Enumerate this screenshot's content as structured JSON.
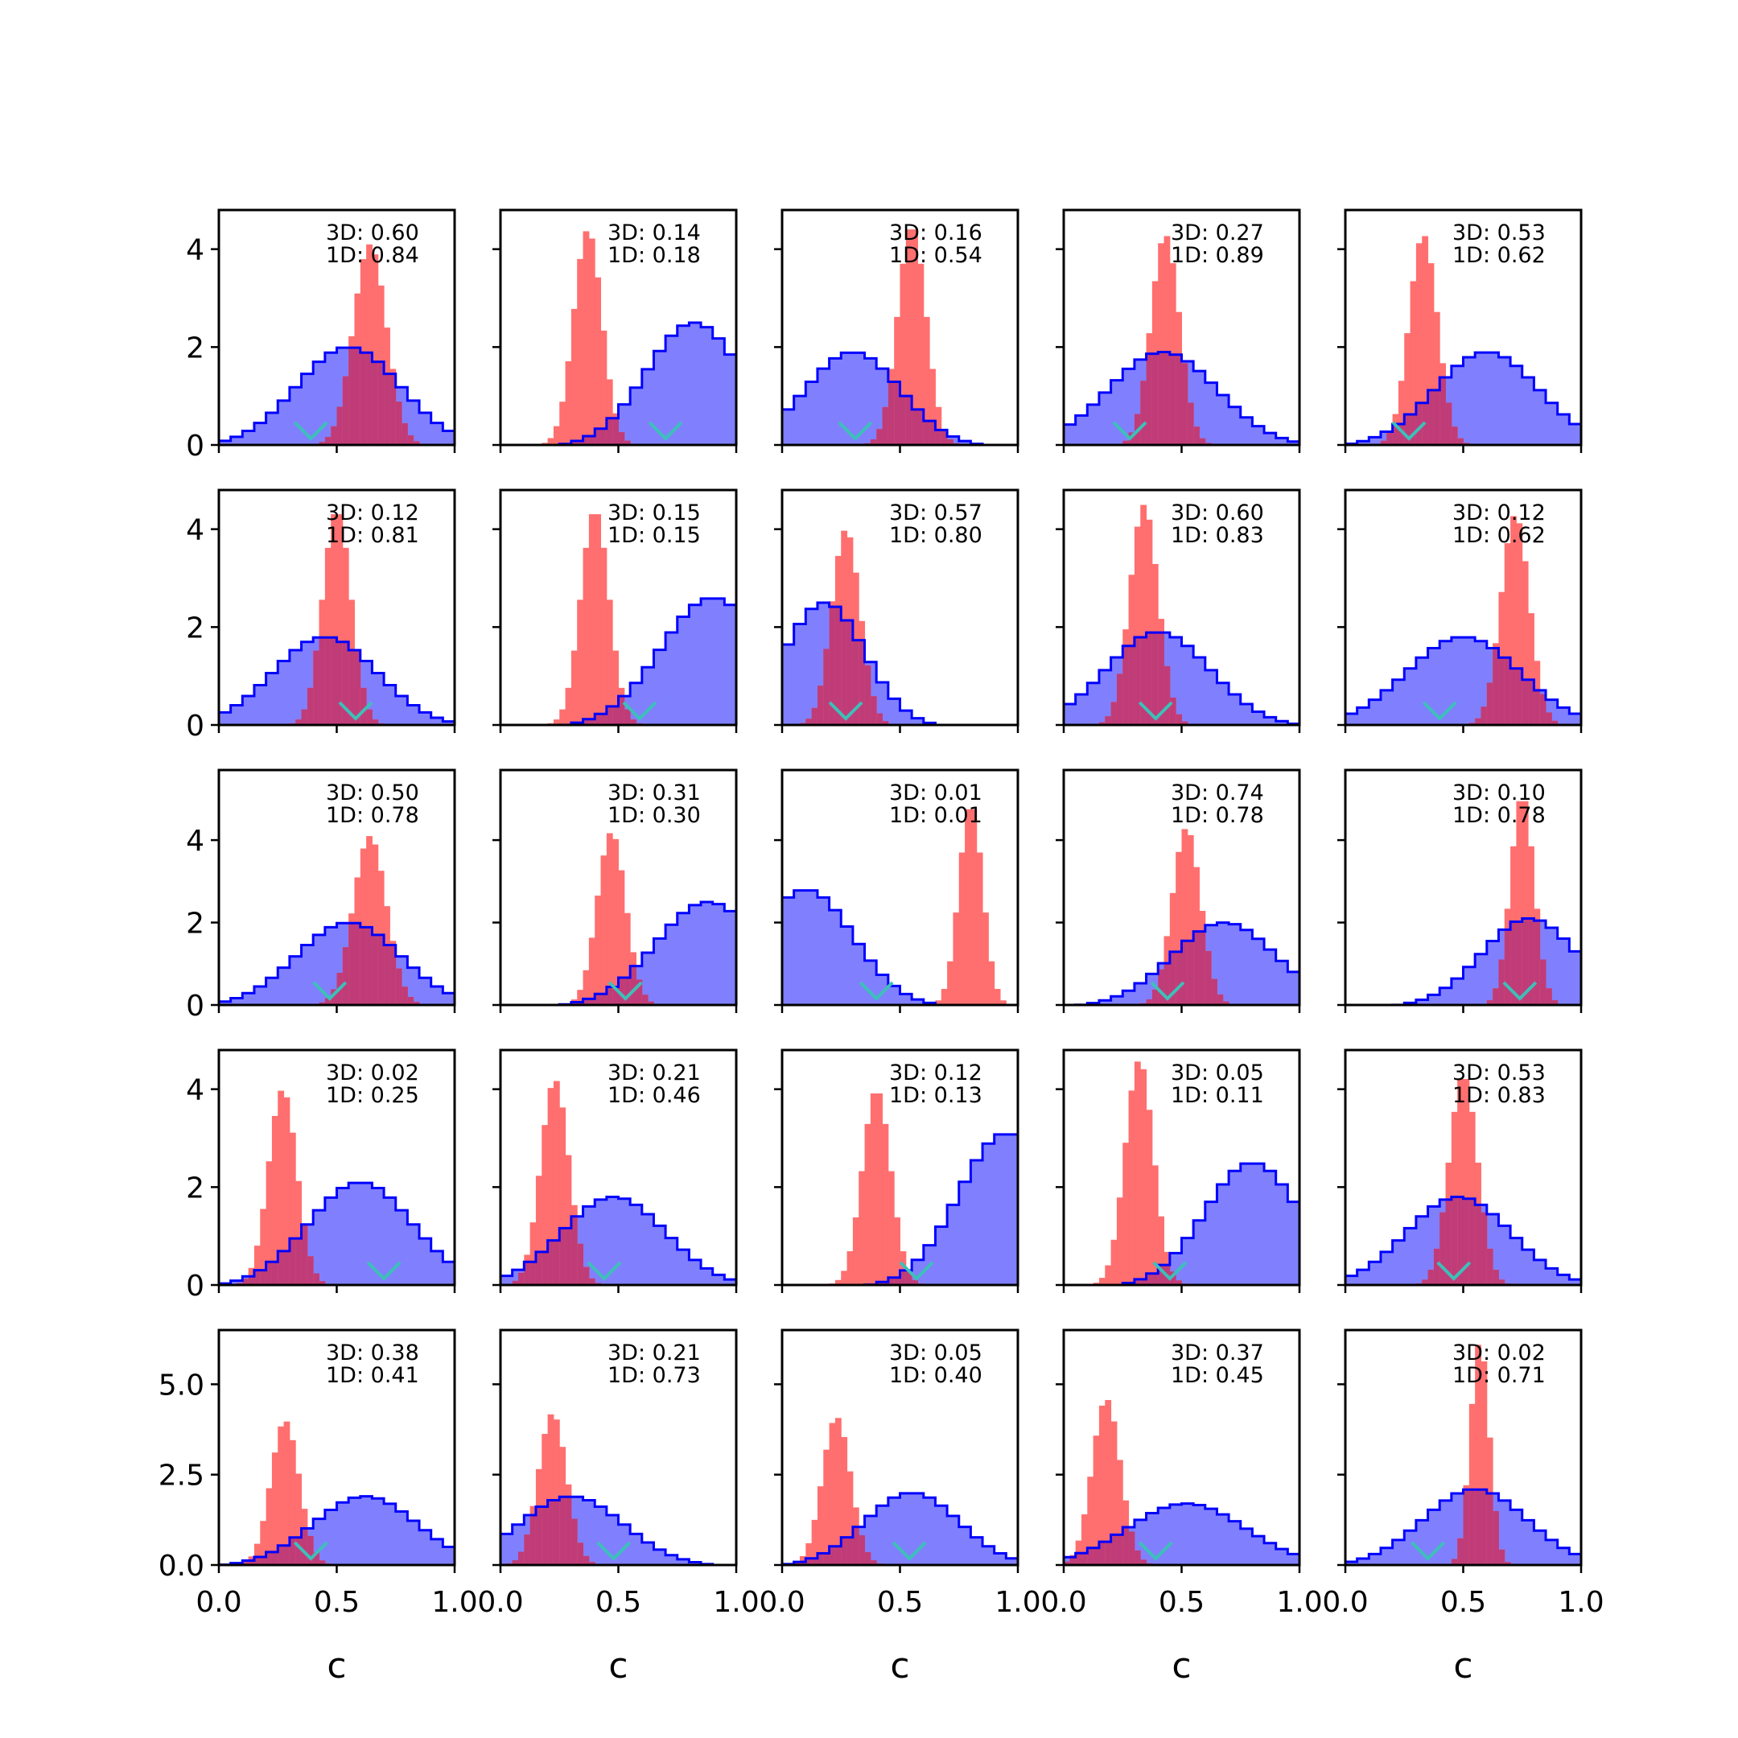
{
  "chart_data": {
    "type": "histogram-grid",
    "rows": 5,
    "cols": 5,
    "xlabel": "c",
    "xlim": [
      0,
      1
    ],
    "x_ticks": [
      "0.0",
      "0.5",
      "1.0"
    ],
    "bin_count": 20,
    "row_ylim": [
      [
        0,
        4.8
      ],
      [
        0,
        4.8
      ],
      [
        0,
        5.7
      ],
      [
        0,
        4.8
      ],
      [
        0,
        6.5
      ]
    ],
    "row_y_ticks": [
      [
        {
          "v": 0,
          "label": "0"
        },
        {
          "v": 2,
          "label": "2"
        },
        {
          "v": 4,
          "label": "4"
        }
      ],
      [
        {
          "v": 0,
          "label": "0"
        },
        {
          "v": 2,
          "label": "2"
        },
        {
          "v": 4,
          "label": "4"
        }
      ],
      [
        {
          "v": 0,
          "label": "0"
        },
        {
          "v": 2,
          "label": "2"
        },
        {
          "v": 4,
          "label": "4"
        }
      ],
      [
        {
          "v": 0,
          "label": "0"
        },
        {
          "v": 2,
          "label": "2"
        },
        {
          "v": 4,
          "label": "4"
        }
      ],
      [
        {
          "v": 0,
          "label": "0.0"
        },
        {
          "v": 2.5,
          "label": "2.5"
        },
        {
          "v": 5,
          "label": "5.0"
        }
      ]
    ],
    "colors": {
      "prior": "#0000ff",
      "prior_fill": "#8080ff",
      "posterior": "#ff6f6f",
      "overlap": "#c03c78",
      "marker": "#3cc0b8"
    },
    "panels": [
      {
        "label3d": "3D: 0.60",
        "label1d": "1D: 0.84",
        "prior": {
          "mean": 0.55,
          "sd": 0.22,
          "peak": 2.0,
          "decay": 0.12
        },
        "post": {
          "mean": 0.64,
          "sd": 0.07,
          "peak": 4.1
        },
        "marker": 0.39
      },
      {
        "label3d": "3D: 0.14",
        "label1d": "1D: 0.18",
        "prior": {
          "mean": 0.82,
          "sd": 0.2,
          "peak": 2.5,
          "decay": 0.12
        },
        "post": {
          "mean": 0.37,
          "sd": 0.06,
          "peak": 4.4
        },
        "marker": 0.7
      },
      {
        "label3d": "3D: 0.16",
        "label1d": "1D: 0.54",
        "prior": {
          "mean": 0.3,
          "sd": 0.2,
          "peak": 1.9,
          "decay": 0.12
        },
        "post": {
          "mean": 0.55,
          "sd": 0.06,
          "peak": 4.5
        },
        "marker": 0.31
      },
      {
        "label3d": "3D: 0.27",
        "label1d": "1D: 0.89",
        "prior": {
          "mean": 0.42,
          "sd": 0.23,
          "peak": 1.9,
          "decay": 0.12
        },
        "post": {
          "mean": 0.43,
          "sd": 0.06,
          "peak": 4.3
        },
        "marker": 0.28
      },
      {
        "label3d": "3D: 0.53",
        "label1d": "1D: 0.62",
        "prior": {
          "mean": 0.6,
          "sd": 0.22,
          "peak": 1.9,
          "decay": 0.12
        },
        "post": {
          "mean": 0.33,
          "sd": 0.06,
          "peak": 4.3
        },
        "marker": 0.27
      },
      {
        "label3d": "3D: 0.12",
        "label1d": "1D: 0.81",
        "prior": {
          "mean": 0.45,
          "sd": 0.22,
          "peak": 1.8,
          "decay": 0.12
        },
        "post": {
          "mean": 0.5,
          "sd": 0.06,
          "peak": 4.4
        },
        "marker": 0.58
      },
      {
        "label3d": "3D: 0.15",
        "label1d": "1D: 0.15",
        "prior": {
          "mean": 0.9,
          "sd": 0.22,
          "peak": 2.6,
          "decay": 0.12
        },
        "post": {
          "mean": 0.4,
          "sd": 0.06,
          "peak": 4.4
        },
        "marker": 0.59
      },
      {
        "label3d": "3D: 0.57",
        "label1d": "1D: 0.80",
        "prior": {
          "mean": 0.18,
          "sd": 0.17,
          "peak": 2.5,
          "decay": 0.12
        },
        "post": {
          "mean": 0.27,
          "sd": 0.06,
          "peak": 4.0
        },
        "marker": 0.27
      },
      {
        "label3d": "3D: 0.60",
        "label1d": "1D: 0.83",
        "prior": {
          "mean": 0.4,
          "sd": 0.22,
          "peak": 1.9,
          "decay": 0.12
        },
        "post": {
          "mean": 0.34,
          "sd": 0.06,
          "peak": 4.5
        },
        "marker": 0.39
      },
      {
        "label3d": "3D: 0.12",
        "label1d": "1D: 0.62",
        "prior": {
          "mean": 0.5,
          "sd": 0.24,
          "peak": 1.8,
          "decay": 0.12
        },
        "post": {
          "mean": 0.72,
          "sd": 0.06,
          "peak": 4.3
        },
        "marker": 0.4
      },
      {
        "label3d": "3D: 0.50",
        "label1d": "1D: 0.78",
        "prior": {
          "mean": 0.55,
          "sd": 0.22,
          "peak": 2.0,
          "decay": 0.12
        },
        "post": {
          "mean": 0.64,
          "sd": 0.07,
          "peak": 4.1
        },
        "marker": 0.47
      },
      {
        "label3d": "3D: 0.31",
        "label1d": "1D: 0.30",
        "prior": {
          "mean": 0.88,
          "sd": 0.22,
          "peak": 2.5,
          "decay": 0.12
        },
        "post": {
          "mean": 0.47,
          "sd": 0.06,
          "peak": 4.2
        },
        "marker": 0.53
      },
      {
        "label3d": "3D: 0.01",
        "label1d": "1D: 0.01",
        "prior": {
          "mean": 0.1,
          "sd": 0.2,
          "peak": 2.8,
          "decay": 0.12
        },
        "post": {
          "mean": 0.8,
          "sd": 0.05,
          "peak": 4.9
        },
        "marker": 0.4
      },
      {
        "label3d": "3D: 0.74",
        "label1d": "1D: 0.78",
        "prior": {
          "mean": 0.68,
          "sd": 0.22,
          "peak": 2.0,
          "decay": 0.12
        },
        "post": {
          "mean": 0.52,
          "sd": 0.06,
          "peak": 4.3
        },
        "marker": 0.44
      },
      {
        "label3d": "3D: 0.10",
        "label1d": "1D: 0.78",
        "prior": {
          "mean": 0.78,
          "sd": 0.2,
          "peak": 2.1,
          "decay": 0.12
        },
        "post": {
          "mean": 0.75,
          "sd": 0.05,
          "peak": 5.1
        },
        "marker": 0.74
      },
      {
        "label3d": "3D: 0.02",
        "label1d": "1D: 0.25",
        "prior": {
          "mean": 0.6,
          "sd": 0.22,
          "peak": 2.1,
          "decay": 0.12
        },
        "post": {
          "mean": 0.27,
          "sd": 0.06,
          "peak": 4.0
        },
        "marker": 0.7
      },
      {
        "label3d": "3D: 0.21",
        "label1d": "1D: 0.46",
        "prior": {
          "mean": 0.48,
          "sd": 0.22,
          "peak": 1.8,
          "decay": 0.12
        },
        "post": {
          "mean": 0.23,
          "sd": 0.06,
          "peak": 4.2
        },
        "marker": 0.44
      },
      {
        "label3d": "3D: 0.12",
        "label1d": "1D: 0.13",
        "prior": {
          "mean": 0.95,
          "sd": 0.2,
          "peak": 3.1,
          "decay": 0.12
        },
        "post": {
          "mean": 0.4,
          "sd": 0.06,
          "peak": 4.0
        },
        "marker": 0.57
      },
      {
        "label3d": "3D: 0.05",
        "label1d": "1D: 0.11",
        "prior": {
          "mean": 0.8,
          "sd": 0.2,
          "peak": 2.5,
          "decay": 0.12
        },
        "post": {
          "mean": 0.32,
          "sd": 0.06,
          "peak": 4.6
        },
        "marker": 0.45
      },
      {
        "label3d": "3D: 0.53",
        "label1d": "1D: 0.83",
        "prior": {
          "mean": 0.48,
          "sd": 0.22,
          "peak": 1.8,
          "decay": 0.12
        },
        "post": {
          "mean": 0.5,
          "sd": 0.06,
          "peak": 4.3
        },
        "marker": 0.46
      },
      {
        "label3d": "3D: 0.38",
        "label1d": "1D: 0.41",
        "prior": {
          "mean": 0.62,
          "sd": 0.22,
          "peak": 1.9,
          "decay": 0.12
        },
        "post": {
          "mean": 0.28,
          "sd": 0.06,
          "peak": 4.0
        },
        "marker": 0.39
      },
      {
        "label3d": "3D: 0.21",
        "label1d": "1D: 0.73",
        "prior": {
          "mean": 0.3,
          "sd": 0.22,
          "peak": 1.9,
          "decay": 0.12
        },
        "post": {
          "mean": 0.22,
          "sd": 0.06,
          "peak": 4.2
        },
        "marker": 0.48
      },
      {
        "label3d": "3D: 0.05",
        "label1d": "1D: 0.40",
        "prior": {
          "mean": 0.55,
          "sd": 0.2,
          "peak": 2.0,
          "decay": 0.12
        },
        "post": {
          "mean": 0.23,
          "sd": 0.06,
          "peak": 4.1
        },
        "marker": 0.54
      },
      {
        "label3d": "3D: 0.37",
        "label1d": "1D: 0.45",
        "prior": {
          "mean": 0.52,
          "sd": 0.25,
          "peak": 1.7,
          "decay": 0.12
        },
        "post": {
          "mean": 0.18,
          "sd": 0.06,
          "peak": 4.6
        },
        "marker": 0.39
      },
      {
        "label3d": "3D: 0.02",
        "label1d": "1D: 0.71",
        "prior": {
          "mean": 0.55,
          "sd": 0.22,
          "peak": 2.1,
          "decay": 0.12
        },
        "post": {
          "mean": 0.57,
          "sd": 0.04,
          "peak": 6.2
        },
        "marker": 0.35
      }
    ]
  }
}
